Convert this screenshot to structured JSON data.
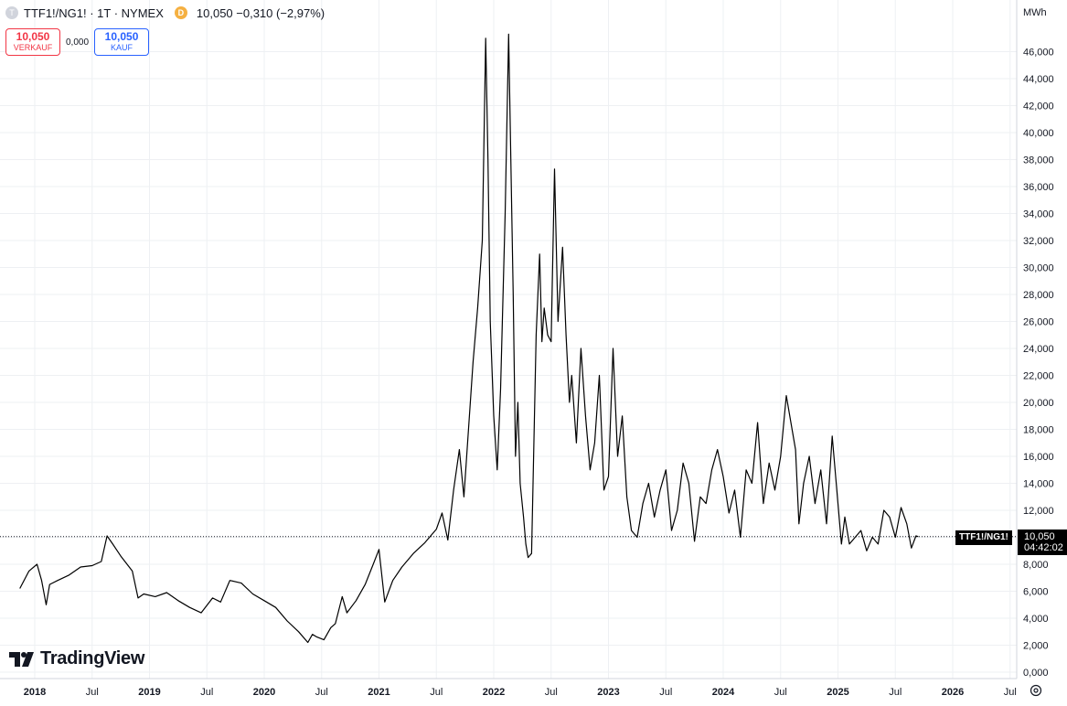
{
  "header": {
    "symbol_icon": "T",
    "title": "TTF1!/NG1! · 1T · NYMEX",
    "badge": "D",
    "last": "10,050 −0,310 (−2,97%)"
  },
  "trade": {
    "sell_value": "10,050",
    "sell_label": "VERKAUF",
    "spread": "0,000",
    "buy_value": "10,050",
    "buy_label": "KAUF"
  },
  "logo_text": "TradingView",
  "unit_label": "MWh",
  "symbol_label": "TTF1!/NG1!",
  "price_label": {
    "price": "10,050",
    "countdown": "04:42:02"
  },
  "colors": {
    "line": "#000000",
    "sell": "#f23645",
    "buy": "#2962ff",
    "grid": "#eef0f3"
  },
  "chart_data": {
    "type": "line",
    "ylabel": "MWh",
    "ylim": [
      0,
      47
    ],
    "xlim": [
      2017.85,
      2026.55
    ],
    "current_price": 10.05,
    "price_ticks": [
      "0,000",
      "2,000",
      "4,000",
      "6,000",
      "8,000",
      "10,000",
      "12,000",
      "14,000",
      "16,000",
      "18,000",
      "20,000",
      "22,000",
      "24,000",
      "26,000",
      "28,000",
      "30,000",
      "32,000",
      "34,000",
      "36,000",
      "38,000",
      "40,000",
      "42,000",
      "44,000",
      "46,000"
    ],
    "time_ticks": [
      {
        "label": "2018",
        "x": 2018.0,
        "year": true
      },
      {
        "label": "Jul",
        "x": 2018.5,
        "year": false
      },
      {
        "label": "2019",
        "x": 2019.0,
        "year": true
      },
      {
        "label": "Jul",
        "x": 2019.5,
        "year": false
      },
      {
        "label": "2020",
        "x": 2020.0,
        "year": true
      },
      {
        "label": "Jul",
        "x": 2020.5,
        "year": false
      },
      {
        "label": "2021",
        "x": 2021.0,
        "year": true
      },
      {
        "label": "Jul",
        "x": 2021.5,
        "year": false
      },
      {
        "label": "2022",
        "x": 2022.0,
        "year": true
      },
      {
        "label": "Jul",
        "x": 2022.5,
        "year": false
      },
      {
        "label": "2023",
        "x": 2023.0,
        "year": true
      },
      {
        "label": "Jul",
        "x": 2023.5,
        "year": false
      },
      {
        "label": "2024",
        "x": 2024.0,
        "year": true
      },
      {
        "label": "Jul",
        "x": 2024.5,
        "year": false
      },
      {
        "label": "2025",
        "x": 2025.0,
        "year": true
      },
      {
        "label": "Jul",
        "x": 2025.5,
        "year": false
      },
      {
        "label": "2026",
        "x": 2026.0,
        "year": true
      },
      {
        "label": "Jul",
        "x": 2026.5,
        "year": false
      }
    ],
    "series": [
      {
        "x": [
          2017.87,
          2017.95,
          2018.02,
          2018.06,
          2018.1,
          2018.13,
          2018.2,
          2018.3,
          2018.4,
          2018.5,
          2018.58,
          2018.63,
          2018.68,
          2018.75,
          2018.85,
          2018.9,
          2018.95,
          2019.05,
          2019.15,
          2019.25,
          2019.35,
          2019.45,
          2019.55,
          2019.62,
          2019.7,
          2019.8,
          2019.9,
          2020.0,
          2020.1,
          2020.2,
          2020.3,
          2020.38,
          2020.42,
          2020.46,
          2020.52,
          2020.58,
          2020.62,
          2020.68,
          2020.72,
          2020.8,
          2020.88,
          2020.95,
          2021.0,
          2021.05,
          2021.12,
          2021.2,
          2021.3,
          2021.4,
          2021.5,
          2021.55,
          2021.6,
          2021.65,
          2021.7,
          2021.74,
          2021.78,
          2021.82,
          2021.86,
          2021.9,
          2021.93,
          2021.95,
          2021.97,
          2022.0,
          2022.03,
          2022.06,
          2022.1,
          2022.13,
          2022.17,
          2022.19,
          2022.21,
          2022.23,
          2022.26,
          2022.28,
          2022.3,
          2022.33,
          2022.37,
          2022.4,
          2022.42,
          2022.44,
          2022.47,
          2022.5,
          2022.53,
          2022.56,
          2022.6,
          2022.63,
          2022.66,
          2022.68,
          2022.72,
          2022.76,
          2022.8,
          2022.84,
          2022.88,
          2022.92,
          2022.96,
          2023.0,
          2023.04,
          2023.08,
          2023.12,
          2023.16,
          2023.2,
          2023.25,
          2023.3,
          2023.35,
          2023.4,
          2023.45,
          2023.5,
          2023.55,
          2023.6,
          2023.65,
          2023.7,
          2023.75,
          2023.8,
          2023.85,
          2023.9,
          2023.95,
          2024.0,
          2024.05,
          2024.1,
          2024.15,
          2024.2,
          2024.25,
          2024.3,
          2024.35,
          2024.4,
          2024.45,
          2024.5,
          2024.55,
          2024.6,
          2024.63,
          2024.66,
          2024.7,
          2024.75,
          2024.8,
          2024.85,
          2024.9,
          2024.95,
          2025.0,
          2025.03,
          2025.06,
          2025.1,
          2025.15,
          2025.2,
          2025.25,
          2025.3,
          2025.35,
          2025.4,
          2025.45,
          2025.5,
          2025.55,
          2025.6,
          2025.64,
          2025.68,
          2025.7
        ],
        "y": [
          6.2,
          7.5,
          8.0,
          6.8,
          5.0,
          6.5,
          6.8,
          7.2,
          7.8,
          7.9,
          8.2,
          10.1,
          9.5,
          8.6,
          7.5,
          5.5,
          5.8,
          5.6,
          5.9,
          5.3,
          4.8,
          4.4,
          5.5,
          5.2,
          6.8,
          6.6,
          5.8,
          5.3,
          4.8,
          3.8,
          3.0,
          2.2,
          2.8,
          2.6,
          2.4,
          3.3,
          3.6,
          5.6,
          4.4,
          5.3,
          6.5,
          8.0,
          9.1,
          5.2,
          6.8,
          7.8,
          8.8,
          9.6,
          10.6,
          11.8,
          9.8,
          13.5,
          16.5,
          13.0,
          18.0,
          23.0,
          27.0,
          32.0,
          47.0,
          38.0,
          26.0,
          19.0,
          15.0,
          21.0,
          34.0,
          47.3,
          28.0,
          16.0,
          20.0,
          14.0,
          11.5,
          9.5,
          8.5,
          8.8,
          25.0,
          31.0,
          24.5,
          27.0,
          25.0,
          24.5,
          37.3,
          26.0,
          31.5,
          25.0,
          20.0,
          22.0,
          17.0,
          24.0,
          19.0,
          15.0,
          17.0,
          22.0,
          13.5,
          14.5,
          24.0,
          16.0,
          19.0,
          13.0,
          10.5,
          10.0,
          12.5,
          14.0,
          11.5,
          13.5,
          15.0,
          10.5,
          12.0,
          15.5,
          14.0,
          9.7,
          13.0,
          12.5,
          15.0,
          16.5,
          14.5,
          11.8,
          13.5,
          10.0,
          15.0,
          14.0,
          18.5,
          12.5,
          15.5,
          13.5,
          16.0,
          20.5,
          18.0,
          16.5,
          11.0,
          14.0,
          16.0,
          12.5,
          15.0,
          11.0,
          17.5,
          12.5,
          9.5,
          11.5,
          9.5,
          10.0,
          10.5,
          9.0,
          10.0,
          9.5,
          12.0,
          11.5,
          10.0,
          12.2,
          11.0,
          9.2,
          10.1,
          10.05
        ]
      }
    ]
  }
}
